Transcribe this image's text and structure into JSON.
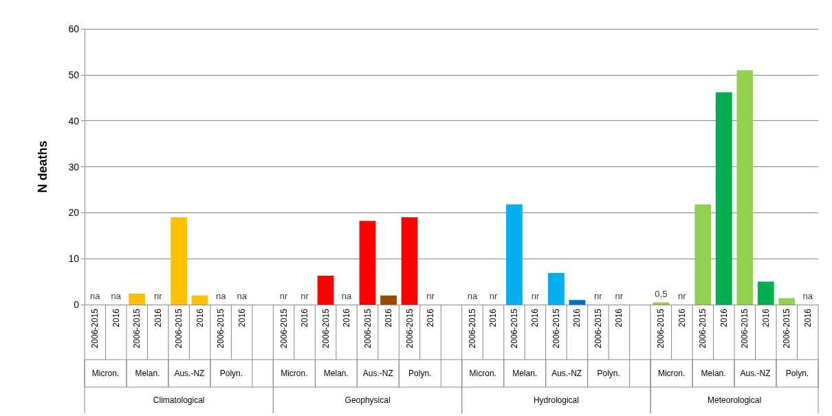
{
  "chart_data": {
    "type": "bar",
    "ylabel": "N deaths",
    "categories": [
      "2006-2015",
      "2016",
      "2006-2015",
      "2016",
      "2006-2015",
      "2016",
      "2006-2015",
      "2016",
      null,
      "2006-2015",
      "2016",
      "2006-2015",
      "2016",
      "2006-2015",
      "2016",
      "2006-2015",
      "2016",
      null,
      "2006-2015",
      "2016",
      "2006-2015",
      "2016",
      "2006-2015",
      "2016",
      "2006-2015",
      "2016",
      null,
      "2006-2015",
      "2016",
      "2006-2015",
      "2016",
      "2006-2015",
      "2016",
      "2006-2015",
      "2016"
    ],
    "values": [
      null,
      null,
      2.4,
      null,
      19,
      2,
      null,
      null,
      null,
      null,
      null,
      6.3,
      null,
      18.2,
      2,
      19,
      null,
      null,
      null,
      null,
      21.8,
      null,
      6.9,
      1,
      null,
      null,
      null,
      0.5,
      null,
      21.8,
      46.2,
      51,
      5,
      1.4,
      null
    ],
    "value_labels": [
      "na",
      "na",
      null,
      "nr",
      null,
      null,
      "na",
      "na",
      null,
      "nr",
      "nr",
      null,
      "na",
      null,
      null,
      null,
      "nr",
      null,
      "na",
      "nr",
      null,
      "nr",
      null,
      null,
      "nr",
      "nr",
      null,
      "0,5",
      "nr",
      null,
      null,
      null,
      null,
      null,
      "na"
    ],
    "colors": [
      "#ffc000",
      "#ffc000",
      "#ffc000",
      "#ffc000",
      "#ffc000",
      "#ffc000",
      "#ffc000",
      "#ffc000",
      "#ffffff",
      "#ff0000",
      "#ff0000",
      "#ff0000",
      "#ff0000",
      "#ff0000",
      "#9c4a00",
      "#ff0000",
      "#ff0000",
      "#ffffff",
      "#00b0f0",
      "#0070c0",
      "#00b0f0",
      "#0070c0",
      "#00b0f0",
      "#0070c0",
      "#00b0f0",
      "#0070c0",
      "#ffffff",
      "#92d050",
      "#00b050",
      "#92d050",
      "#00b050",
      "#92d050",
      "#00b050",
      "#92d050",
      "#00b050"
    ],
    "annotations": [
      "Micron.",
      "Melan.",
      "Aus.-NZ",
      "Polyn.",
      "Climatological",
      "Micron.",
      "Melan.",
      "Aus.-NZ",
      "Polyn.",
      "Geophysical",
      "Micron.",
      "Melan.",
      "Aus.-NZ",
      "Polyn.",
      "Hydrological",
      "Micron.",
      "Melan.",
      "Aus.-NZ",
      "Polyn.",
      "Meteorological"
    ],
    "ylim": [
      0,
      60
    ],
    "yticks": [
      0,
      10,
      20,
      30,
      40,
      50,
      60
    ],
    "grid": "y"
  }
}
